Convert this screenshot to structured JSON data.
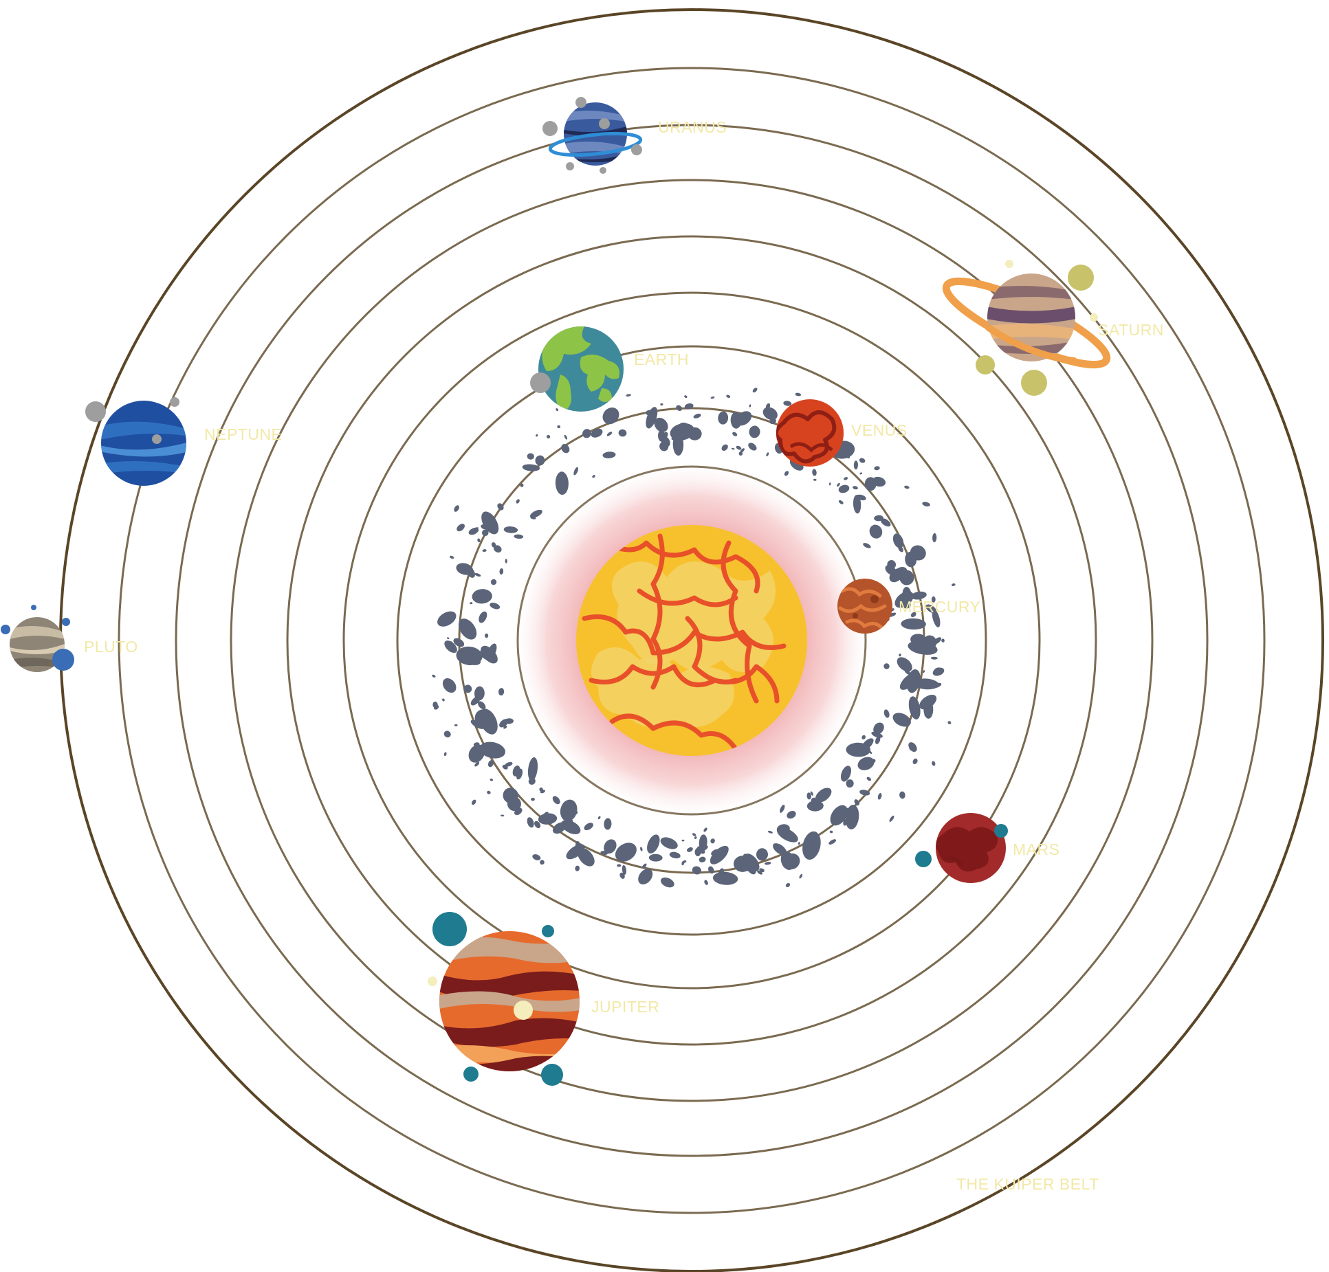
{
  "labels": {
    "uranus": "URANUS",
    "saturn": "SATURN",
    "earth": "EARTH",
    "neptune": "NEPTUNE",
    "venus": "VENUS",
    "mercury": "MERCURY",
    "pluto": "PLUTO",
    "mars": "MARS",
    "jupiter": "JUPITER",
    "kuiper_belt": "THE KUIPER BELT"
  },
  "colors": {
    "orbit": "#7a6a50",
    "outer_orbit": "#5a4526",
    "label_text": "#f2e8a6",
    "asteroid": "#5b6478",
    "sun_core": "#f7c12e",
    "sun_glow": "#e9868a",
    "sun_veins": "#e8502a"
  }
}
